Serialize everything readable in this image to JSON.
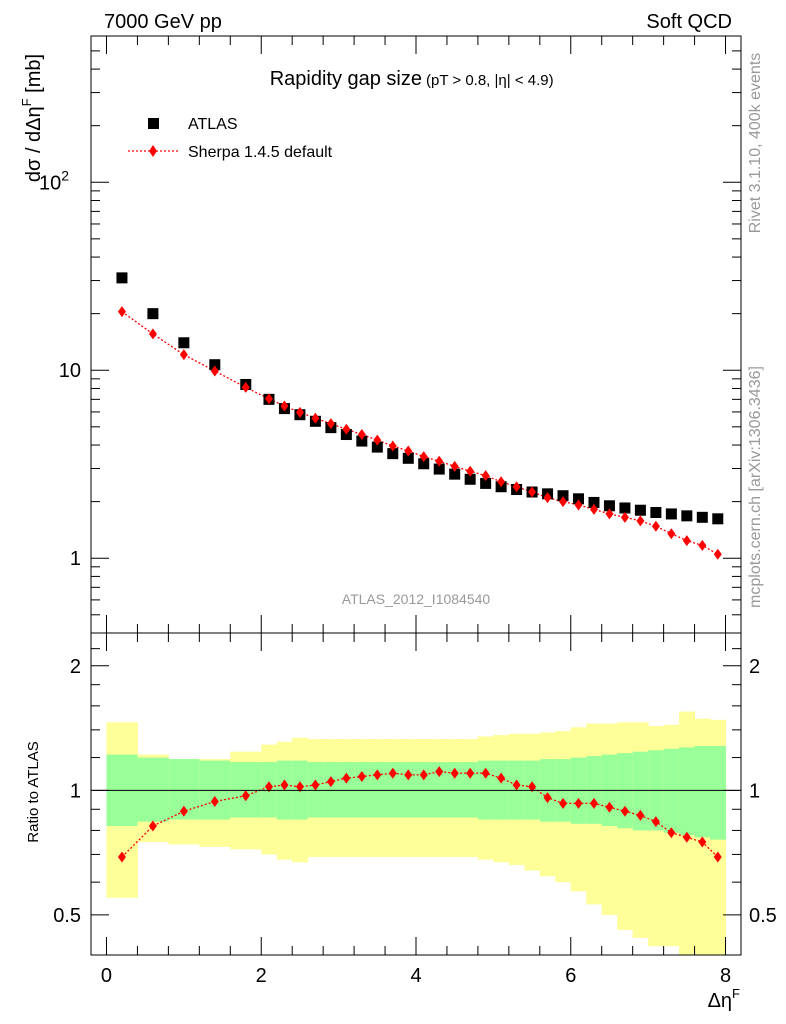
{
  "header": {
    "energy_label": "7000 GeV pp",
    "process_label": "Soft QCD"
  },
  "side": {
    "rivet_label": "Rivet 3.1.10,  400k events",
    "mcplots_label": "mcplots.cern.ch [arXiv:1306.3436]"
  },
  "colors": {
    "data": "#000000",
    "mc": "#ff0000",
    "band_inner": "#99ff99",
    "band_outer": "#ffff99"
  },
  "chart_data": [
    {
      "type": "scatter",
      "title": "Rapidity gap size",
      "subtitle": "(pT > 0.8, |η| < 4.9)",
      "ylabel": "dσ / dΔη",
      "ylabel_sup": "F",
      "ylabel_unit": "[mb]",
      "yscale": "log",
      "ylim": [
        0.4,
        600
      ],
      "xlim": [
        -0.2,
        8.2
      ],
      "y_ticks": [
        {
          "value": 1,
          "label": "1"
        },
        {
          "value": 10,
          "label": "10"
        },
        {
          "value": 100,
          "label": "10",
          "sup": "2"
        }
      ],
      "watermark": "ATLAS_2012_I1084540",
      "legend_position": "top-left",
      "series": [
        {
          "name": "ATLAS",
          "style": "square",
          "x": [
            0.2,
            0.6,
            1.0,
            1.4,
            1.8,
            2.1,
            2.3,
            2.5,
            2.7,
            2.9,
            3.1,
            3.3,
            3.5,
            3.7,
            3.9,
            4.1,
            4.3,
            4.5,
            4.7,
            4.9,
            5.1,
            5.3,
            5.5,
            5.7,
            5.9,
            6.1,
            6.3,
            6.5,
            6.7,
            6.9,
            7.1,
            7.3,
            7.5,
            7.7,
            7.9
          ],
          "y": [
            31,
            20,
            14,
            10.7,
            8.4,
            7.0,
            6.25,
            5.8,
            5.35,
            4.95,
            4.55,
            4.2,
            3.9,
            3.6,
            3.4,
            3.18,
            2.98,
            2.8,
            2.63,
            2.5,
            2.4,
            2.32,
            2.25,
            2.2,
            2.15,
            2.07,
            1.98,
            1.9,
            1.85,
            1.8,
            1.75,
            1.72,
            1.68,
            1.65,
            1.62
          ]
        },
        {
          "name": "Sherpa 1.4.5 default",
          "style": "diamond-dotted",
          "x": [
            0.2,
            0.6,
            1.0,
            1.4,
            1.8,
            2.1,
            2.3,
            2.5,
            2.7,
            2.9,
            3.1,
            3.3,
            3.5,
            3.7,
            3.9,
            4.1,
            4.3,
            4.5,
            4.7,
            4.9,
            5.1,
            5.3,
            5.5,
            5.7,
            5.9,
            6.1,
            6.3,
            6.5,
            6.7,
            6.9,
            7.1,
            7.3,
            7.5,
            7.7,
            7.9
          ],
          "y": [
            20.5,
            15.6,
            12.1,
            9.9,
            8.1,
            7.05,
            6.45,
            5.97,
            5.55,
            5.2,
            4.85,
            4.55,
            4.25,
            3.95,
            3.72,
            3.47,
            3.28,
            3.08,
            2.9,
            2.75,
            2.55,
            2.4,
            2.25,
            2.1,
            2.0,
            1.92,
            1.82,
            1.72,
            1.65,
            1.58,
            1.48,
            1.35,
            1.24,
            1.17,
            1.05
          ]
        }
      ]
    },
    {
      "type": "scatter",
      "ylabel": "Ratio to ATLAS",
      "xlabel": "Δη",
      "xlabel_sup": "F",
      "yscale": "log",
      "ylim": [
        0.4,
        2.4
      ],
      "xlim": [
        -0.2,
        8.2
      ],
      "x_ticks": [
        0,
        2,
        4,
        6,
        8
      ],
      "y_ticks": [
        0.5,
        1,
        2
      ],
      "reference_line": 1,
      "bands": {
        "edges": [
          0,
          0.4,
          0.8,
          1.2,
          1.6,
          2.0,
          2.2,
          2.4,
          2.6,
          2.8,
          3.0,
          3.2,
          3.4,
          3.6,
          3.8,
          4.0,
          4.2,
          4.4,
          4.6,
          4.8,
          5.0,
          5.2,
          5.4,
          5.6,
          5.8,
          6.0,
          6.2,
          6.4,
          6.6,
          6.8,
          7.0,
          7.2,
          7.4,
          7.6,
          7.8,
          8.0
        ],
        "inner_low": [
          0.82,
          0.84,
          0.85,
          0.85,
          0.86,
          0.86,
          0.85,
          0.85,
          0.86,
          0.86,
          0.86,
          0.86,
          0.86,
          0.86,
          0.86,
          0.86,
          0.86,
          0.86,
          0.86,
          0.85,
          0.85,
          0.85,
          0.85,
          0.84,
          0.84,
          0.83,
          0.83,
          0.82,
          0.81,
          0.8,
          0.8,
          0.79,
          0.78,
          0.77,
          0.76
        ],
        "inner_high": [
          1.22,
          1.2,
          1.19,
          1.18,
          1.17,
          1.17,
          1.18,
          1.18,
          1.17,
          1.17,
          1.17,
          1.17,
          1.17,
          1.17,
          1.17,
          1.17,
          1.17,
          1.17,
          1.17,
          1.18,
          1.18,
          1.18,
          1.18,
          1.19,
          1.19,
          1.2,
          1.21,
          1.22,
          1.23,
          1.24,
          1.25,
          1.26,
          1.27,
          1.28,
          1.28
        ],
        "outer_low": [
          0.55,
          0.75,
          0.74,
          0.73,
          0.72,
          0.7,
          0.68,
          0.67,
          0.69,
          0.69,
          0.69,
          0.69,
          0.69,
          0.69,
          0.69,
          0.69,
          0.69,
          0.69,
          0.69,
          0.68,
          0.67,
          0.66,
          0.64,
          0.62,
          0.6,
          0.57,
          0.53,
          0.5,
          0.46,
          0.44,
          0.42,
          0.42,
          0.35,
          0.37,
          0.37
        ],
        "outer_high": [
          1.46,
          1.22,
          1.19,
          1.19,
          1.24,
          1.29,
          1.31,
          1.34,
          1.33,
          1.33,
          1.33,
          1.33,
          1.33,
          1.33,
          1.33,
          1.33,
          1.33,
          1.33,
          1.33,
          1.35,
          1.36,
          1.37,
          1.37,
          1.38,
          1.39,
          1.42,
          1.45,
          1.45,
          1.46,
          1.46,
          1.43,
          1.44,
          1.55,
          1.49,
          1.48
        ]
      },
      "series": [
        {
          "name": "Sherpa 1.4.5 default",
          "style": "diamond-dotted",
          "x": [
            0.2,
            0.6,
            1.0,
            1.4,
            1.8,
            2.1,
            2.3,
            2.5,
            2.7,
            2.9,
            3.1,
            3.3,
            3.5,
            3.7,
            3.9,
            4.1,
            4.3,
            4.5,
            4.7,
            4.9,
            5.1,
            5.3,
            5.5,
            5.7,
            5.9,
            6.1,
            6.3,
            6.5,
            6.7,
            6.9,
            7.1,
            7.3,
            7.5,
            7.7,
            7.9
          ],
          "y": [
            0.69,
            0.82,
            0.89,
            0.94,
            0.97,
            1.02,
            1.03,
            1.02,
            1.03,
            1.05,
            1.07,
            1.08,
            1.09,
            1.1,
            1.09,
            1.09,
            1.11,
            1.1,
            1.1,
            1.1,
            1.07,
            1.03,
            1.02,
            0.96,
            0.93,
            0.93,
            0.93,
            0.91,
            0.89,
            0.87,
            0.84,
            0.79,
            0.77,
            0.75,
            0.69
          ]
        }
      ]
    }
  ]
}
